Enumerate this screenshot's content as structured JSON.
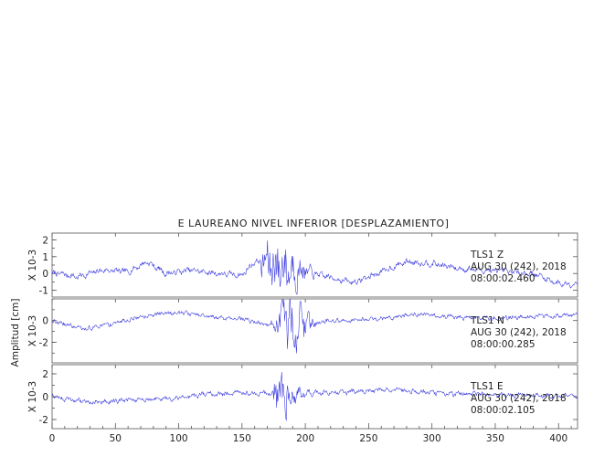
{
  "chart_data": {
    "type": "line",
    "title": "E LAUREANO NIVEL INFERIOR [DESPLAZAMIENTO]",
    "ylabel": "Amplitud [cm]",
    "xlim": [
      0,
      415
    ],
    "x_ticks": [
      0,
      50,
      100,
      150,
      200,
      250,
      300,
      350,
      400
    ],
    "line_color": "#3333dd",
    "grid": false,
    "series": [
      {
        "name": "Z",
        "scale_label": "X 10-3",
        "ylim": [
          -1.4,
          2.4
        ],
        "y_ticks": [
          -1,
          0,
          1,
          2
        ],
        "annotation": [
          "TLS1   Z",
          "AUG 30 (242), 2018",
          "08:00:02.460"
        ],
        "envelope": {
          "base_amplitude": 0.25,
          "pre_event_x": [
            5,
            20,
            40,
            60,
            75,
            90,
            110,
            130,
            150,
            160
          ],
          "pre_event_y": [
            0.0,
            -0.2,
            0.2,
            0.1,
            0.7,
            0.0,
            0.2,
            0.0,
            -0.1,
            0.7
          ],
          "strong_motion_start": 165,
          "strong_motion_end": 235,
          "strong_motion_peak_x": 180,
          "strong_motion_peak_amplitude": 2.2,
          "post_event_x": [
            240,
            260,
            280,
            300,
            320,
            340,
            360,
            380,
            400,
            415
          ],
          "post_event_y": [
            -0.5,
            0.1,
            0.7,
            0.6,
            0.3,
            0.2,
            0.1,
            0.0,
            -0.6,
            -0.6
          ]
        }
      },
      {
        "name": "N",
        "scale_label": "X 10-3",
        "ylim": [
          -3.9,
          2.0
        ],
        "y_ticks": [
          -2,
          0
        ],
        "annotation": [
          "TLS1   N",
          "AUG 30 (242), 2018",
          "08:00:00.285"
        ],
        "envelope": {
          "base_amplitude": 0.3,
          "pre_event_x": [
            0,
            25,
            50,
            75,
            100,
            125,
            150,
            170
          ],
          "pre_event_y": [
            0.0,
            -0.8,
            -0.2,
            0.5,
            0.8,
            0.3,
            0.2,
            -0.4
          ],
          "strong_motion_start": 172,
          "strong_motion_end": 225,
          "strong_motion_peak_x": 190,
          "strong_motion_peak_amplitude": 3.2,
          "post_event_x": [
            230,
            260,
            290,
            320,
            350,
            380,
            415
          ],
          "post_event_y": [
            0.0,
            0.2,
            0.6,
            0.3,
            0.2,
            0.4,
            0.5
          ]
        }
      },
      {
        "name": "E",
        "scale_label": "X 10-3",
        "ylim": [
          -2.8,
          2.8
        ],
        "y_ticks": [
          -2,
          0,
          2
        ],
        "annotation": [
          "TLS1   E",
          "AUG 30 (242), 2018",
          "08:00:02.105"
        ],
        "envelope": {
          "base_amplitude": 0.3,
          "pre_event_x": [
            0,
            30,
            60,
            90,
            120,
            150,
            172
          ],
          "pre_event_y": [
            0.0,
            -0.5,
            -0.3,
            -0.2,
            0.2,
            0.3,
            0.3
          ],
          "strong_motion_start": 175,
          "strong_motion_end": 225,
          "strong_motion_peak_x": 182,
          "strong_motion_peak_amplitude": 2.6,
          "post_event_x": [
            230,
            270,
            310,
            350,
            390,
            415
          ],
          "post_event_y": [
            0.4,
            0.6,
            0.3,
            0.2,
            0.1,
            0.0
          ]
        }
      }
    ]
  }
}
